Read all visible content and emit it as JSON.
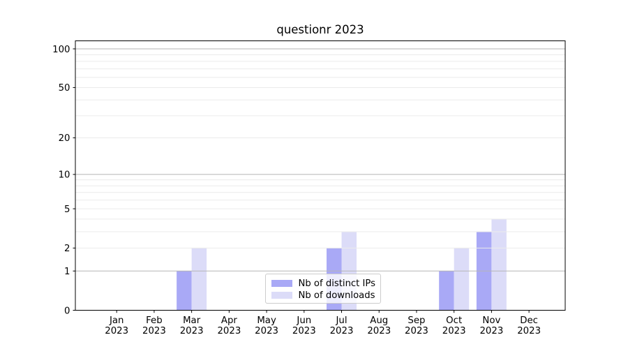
{
  "chart_data": {
    "type": "bar",
    "title": "questionr 2023",
    "categories": [
      "Jan 2023",
      "Feb 2023",
      "Mar 2023",
      "Apr 2023",
      "May 2023",
      "Jun 2023",
      "Jul 2023",
      "Aug 2023",
      "Sep 2023",
      "Oct 2023",
      "Nov 2023",
      "Dec 2023"
    ],
    "series": [
      {
        "name": "Nb of distinct IPs",
        "color": "#a9a9f6",
        "values": [
          0,
          0,
          1,
          0,
          0,
          0,
          2,
          0,
          0,
          1,
          3,
          0
        ]
      },
      {
        "name": "Nb of downloads",
        "color": "#dcdcf8",
        "values": [
          0,
          0,
          2,
          0,
          0,
          0,
          3,
          0,
          0,
          2,
          4,
          0
        ]
      }
    ],
    "y_scale": "log10(value+1)",
    "y_ticks": [
      100,
      50,
      20,
      10,
      5,
      2,
      1,
      0
    ],
    "y_major_gridlines": [
      1,
      10,
      100
    ],
    "y_minor_gridlines": [
      2,
      3,
      4,
      5,
      6,
      7,
      8,
      9,
      20,
      30,
      40,
      50,
      60,
      70,
      80,
      90
    ],
    "ylim": [
      0,
      115
    ],
    "grid": "horizontal",
    "legend_position": "lower center",
    "colors": {
      "axis": "#000000",
      "grid_major": "#b5b5b5",
      "grid_minor": "#ebebeb",
      "background": "#ffffff"
    }
  }
}
